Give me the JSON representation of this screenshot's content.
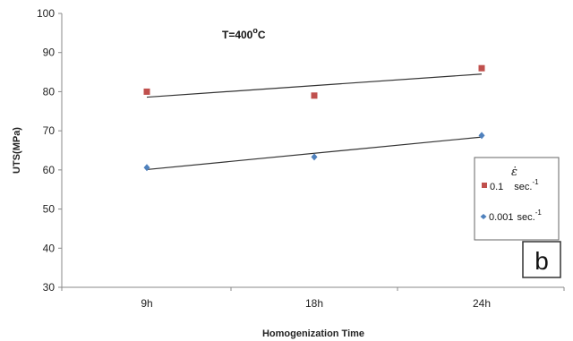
{
  "chart_data": {
    "type": "scatter",
    "xlabel": "Homogenization Time",
    "ylabel": "UTS(MPa)",
    "categories": [
      "9h",
      "18h",
      "24h"
    ],
    "ylim": [
      30,
      100
    ],
    "yticks": [
      30,
      40,
      50,
      60,
      70,
      80,
      90,
      100
    ],
    "annotation": {
      "prefix": "T=400",
      "degree": "o",
      "unit": "C"
    },
    "legend": {
      "symbol": "ε̇",
      "placement": "right"
    },
    "panel_label": "b",
    "series": [
      {
        "name": "0.1",
        "unit": "sec.",
        "unit_exp": "-1",
        "color": "#c0504d",
        "marker": "square",
        "values": [
          80,
          79,
          86
        ],
        "trendline": [
          78.6,
          84.5
        ]
      },
      {
        "name": "0.001",
        "unit": "sec.",
        "unit_exp": "-1",
        "color": "#4f81bd",
        "marker": "diamond",
        "values": [
          60.6,
          63.3,
          68.8
        ],
        "trendline": [
          60.1,
          68.4
        ]
      }
    ]
  }
}
